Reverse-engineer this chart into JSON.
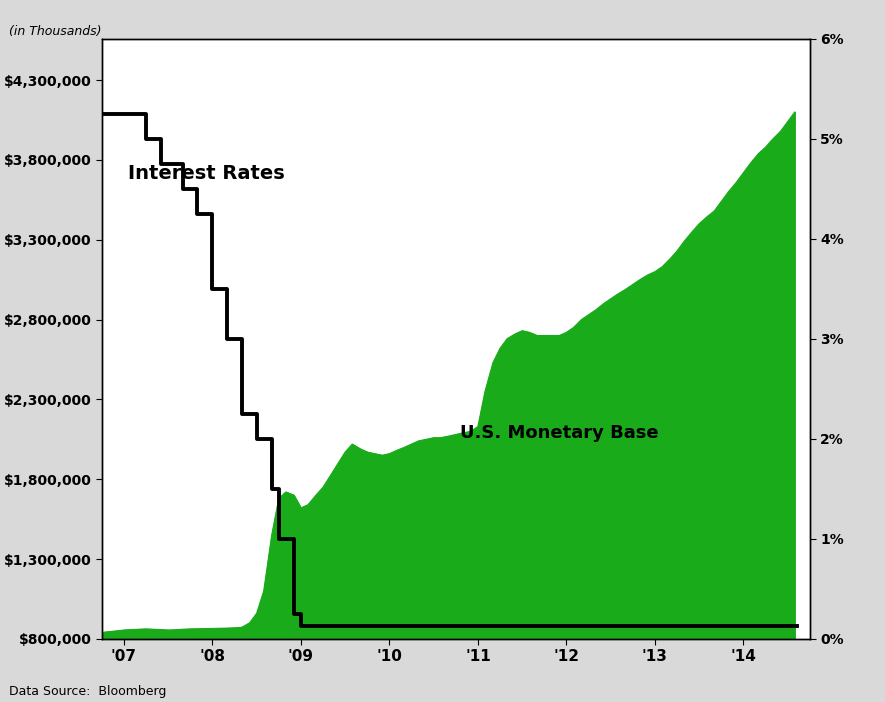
{
  "subtitle_left": "(in Thousands)",
  "data_source": "Data Source:  Bloomberg",
  "label_monetary_base": "U.S. Monetary Base",
  "label_interest_rates": "Interest Rates",
  "background_color": "#d9d9d9",
  "plot_bg_color": "#ffffff",
  "border_color": "#000000",
  "fill_color": "#1aab1a",
  "line_color": "#000000",
  "left_ylim": [
    800000,
    4560000
  ],
  "right_ylim": [
    0,
    6.0
  ],
  "left_yticks": [
    800000,
    1300000,
    1800000,
    2300000,
    2800000,
    3300000,
    3800000,
    4300000
  ],
  "left_ytick_labels": [
    "$800,000",
    "$1,300,000",
    "$1,800,000",
    "$2,300,000",
    "$2,800,000",
    "$3,300,000",
    "$3,800,000",
    "$4,300,000"
  ],
  "right_yticks": [
    0,
    1,
    2,
    3,
    4,
    5,
    6
  ],
  "right_ytick_labels": [
    "0%",
    "1%",
    "2%",
    "3%",
    "4%",
    "5%",
    "6%"
  ],
  "xtick_years": [
    2007,
    2008,
    2009,
    2010,
    2011,
    2012,
    2013,
    2014
  ],
  "xtick_labels": [
    "'07",
    "'08",
    "'09",
    "'10",
    "'11",
    "'12",
    "'13",
    "'14"
  ],
  "xlim": [
    2006.75,
    2014.75
  ],
  "monetary_base_x": [
    2006.75,
    2006.83,
    2006.92,
    2007.0,
    2007.08,
    2007.17,
    2007.25,
    2007.33,
    2007.42,
    2007.5,
    2007.58,
    2007.67,
    2007.75,
    2007.83,
    2007.92,
    2008.0,
    2008.08,
    2008.17,
    2008.25,
    2008.33,
    2008.42,
    2008.5,
    2008.58,
    2008.67,
    2008.75,
    2008.83,
    2008.92,
    2009.0,
    2009.08,
    2009.17,
    2009.25,
    2009.33,
    2009.42,
    2009.5,
    2009.58,
    2009.67,
    2009.75,
    2009.83,
    2009.92,
    2010.0,
    2010.08,
    2010.17,
    2010.25,
    2010.33,
    2010.42,
    2010.5,
    2010.58,
    2010.67,
    2010.75,
    2010.83,
    2010.92,
    2011.0,
    2011.08,
    2011.17,
    2011.25,
    2011.33,
    2011.42,
    2011.5,
    2011.58,
    2011.67,
    2011.75,
    2011.83,
    2011.92,
    2012.0,
    2012.08,
    2012.17,
    2012.25,
    2012.33,
    2012.42,
    2012.5,
    2012.58,
    2012.67,
    2012.75,
    2012.83,
    2012.92,
    2013.0,
    2013.08,
    2013.17,
    2013.25,
    2013.33,
    2013.42,
    2013.5,
    2013.58,
    2013.67,
    2013.75,
    2013.83,
    2013.92,
    2014.0,
    2014.08,
    2014.17,
    2014.25,
    2014.33,
    2014.42,
    2014.5,
    2014.58
  ],
  "monetary_base_y": [
    840000,
    845000,
    850000,
    855000,
    858000,
    860000,
    862000,
    860000,
    858000,
    855000,
    857000,
    860000,
    862000,
    863000,
    864000,
    865000,
    866000,
    867000,
    869000,
    872000,
    900000,
    960000,
    1100000,
    1450000,
    1680000,
    1720000,
    1700000,
    1620000,
    1640000,
    1700000,
    1750000,
    1820000,
    1900000,
    1970000,
    2020000,
    1990000,
    1970000,
    1960000,
    1950000,
    1960000,
    1980000,
    2000000,
    2020000,
    2040000,
    2050000,
    2060000,
    2060000,
    2070000,
    2080000,
    2090000,
    2100000,
    2130000,
    2350000,
    2530000,
    2620000,
    2680000,
    2710000,
    2730000,
    2720000,
    2700000,
    2700000,
    2700000,
    2700000,
    2720000,
    2750000,
    2800000,
    2830000,
    2860000,
    2900000,
    2930000,
    2960000,
    2990000,
    3020000,
    3050000,
    3080000,
    3100000,
    3130000,
    3180000,
    3230000,
    3290000,
    3350000,
    3400000,
    3440000,
    3480000,
    3540000,
    3600000,
    3660000,
    3720000,
    3780000,
    3840000,
    3880000,
    3930000,
    3980000,
    4040000,
    4100000
  ],
  "interest_rate_x": [
    2006.75,
    2007.0,
    2007.25,
    2007.42,
    2007.67,
    2007.83,
    2008.0,
    2008.17,
    2008.33,
    2008.5,
    2008.67,
    2008.75,
    2008.92,
    2009.0,
    2014.6
  ],
  "interest_rate_y": [
    5.25,
    5.25,
    5.0,
    4.75,
    4.5,
    4.25,
    3.5,
    3.0,
    2.25,
    2.0,
    1.5,
    1.0,
    0.25,
    0.125,
    0.125
  ]
}
